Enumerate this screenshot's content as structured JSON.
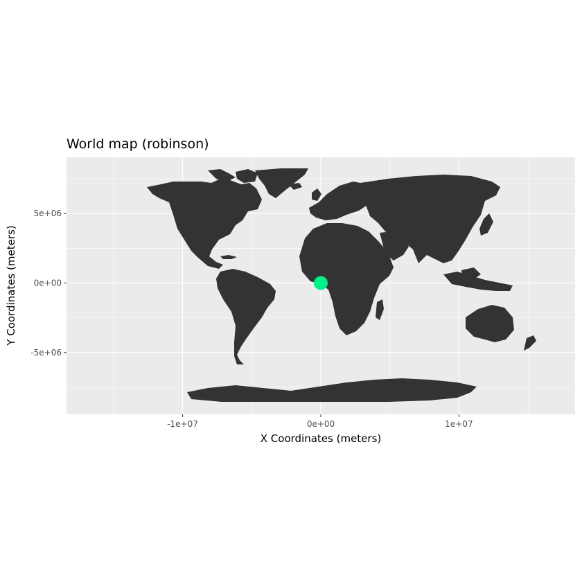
{
  "title": "World map (robinson)",
  "x_axis": {
    "label": "X Coordinates (meters)",
    "ticks": [
      {
        "value": -10000000,
        "label": "-1e+07"
      },
      {
        "value": 0,
        "label": "0e+00"
      },
      {
        "value": 10000000,
        "label": "1e+07"
      }
    ],
    "minor_ticks": [
      -15000000,
      -5000000,
      5000000,
      15000000
    ],
    "range": [
      -18400000,
      18400000
    ]
  },
  "y_axis": {
    "label": "Y Coordinates (meters)",
    "ticks": [
      {
        "value": 5000000,
        "label": "5e+06"
      },
      {
        "value": 0,
        "label": "0e+00"
      },
      {
        "value": -5000000,
        "label": "-5e+06"
      }
    ],
    "minor_ticks": [
      -7500000,
      -2500000,
      2500000,
      7500000
    ],
    "range": [
      -9450000,
      9050000
    ]
  },
  "projection": "robinson",
  "colors": {
    "panel_background": "#ebebeb",
    "grid": "#ffffff",
    "land": "#333333",
    "point": "#00f08c"
  },
  "chart_data": {
    "type": "scatter",
    "title": "World map (robinson)",
    "xlabel": "X Coordinates (meters)",
    "ylabel": "Y Coordinates (meters)",
    "xlim": [
      -18400000,
      18400000
    ],
    "ylim": [
      -9450000,
      9050000
    ],
    "grid": true,
    "points": [
      {
        "x": 0,
        "y": 0
      }
    ]
  }
}
